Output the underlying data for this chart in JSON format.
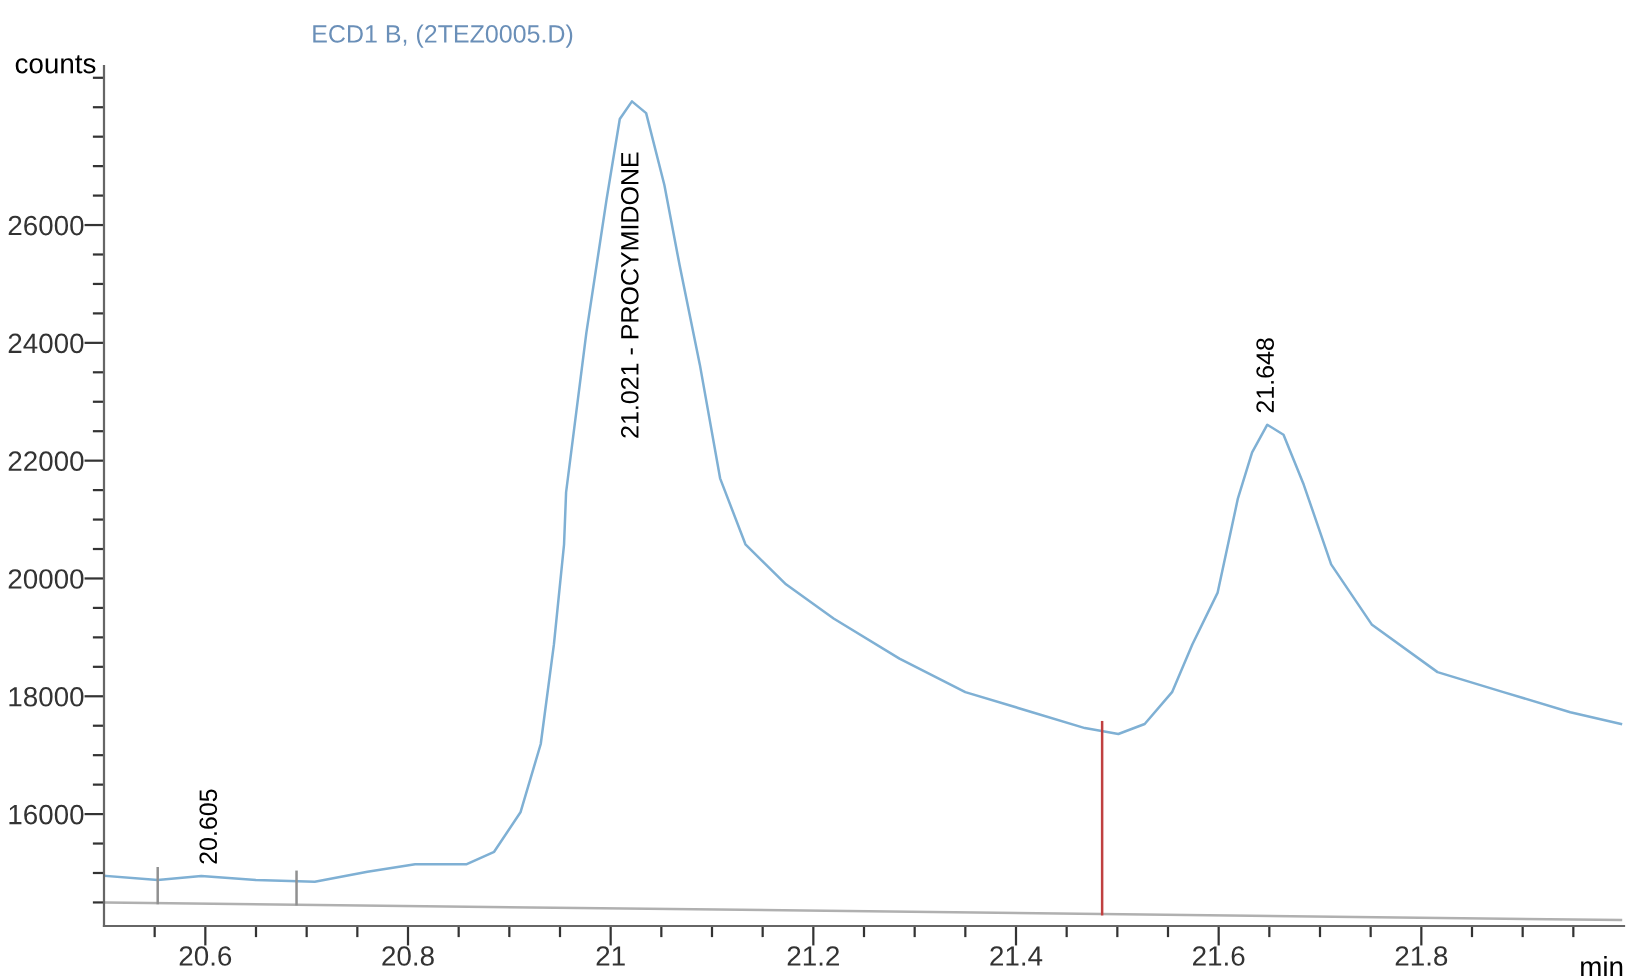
{
  "chart_data": {
    "type": "line",
    "title": "ECD1 B, (2TEZ0005.D)",
    "ylabel": "counts",
    "xlabel": "min",
    "xlim": [
      20.5,
      22.0
    ],
    "ylim": [
      14100,
      28700
    ],
    "xticks": [
      {
        "value": 20.55,
        "label": null
      },
      20.6,
      {
        "value": 20.65,
        "label": null
      },
      {
        "value": 20.7,
        "label": null
      },
      {
        "value": 20.75,
        "label": null
      },
      20.8,
      {
        "value": 20.85,
        "label": null
      },
      {
        "value": 20.9,
        "label": null
      },
      {
        "value": 20.95,
        "label": null
      },
      {
        "value": 21.0,
        "label": "21"
      },
      {
        "value": 21.05,
        "label": null
      },
      {
        "value": 21.1,
        "label": null
      },
      {
        "value": 21.15,
        "label": null
      },
      21.2,
      {
        "value": 21.25,
        "label": null
      },
      {
        "value": 21.3,
        "label": null
      },
      {
        "value": 21.35,
        "label": null
      },
      21.4,
      {
        "value": 21.45,
        "label": null
      },
      {
        "value": 21.5,
        "label": null
      },
      {
        "value": 21.55,
        "label": null
      },
      21.6,
      {
        "value": 21.65,
        "label": null
      },
      {
        "value": 21.7,
        "label": null
      },
      {
        "value": 21.75,
        "label": null
      },
      21.8,
      {
        "value": 21.85,
        "label": null
      },
      {
        "value": 21.9,
        "label": null
      },
      {
        "value": 21.95,
        "label": null
      }
    ],
    "yticks": [
      {
        "value": 14500,
        "label": null
      },
      {
        "value": 15000,
        "label": null
      },
      {
        "value": 15500,
        "label": null
      },
      16000,
      {
        "value": 16500,
        "label": null
      },
      {
        "value": 17000,
        "label": null
      },
      {
        "value": 17500,
        "label": null
      },
      18000,
      {
        "value": 18500,
        "label": null
      },
      {
        "value": 19000,
        "label": null
      },
      {
        "value": 19500,
        "label": null
      },
      20000,
      {
        "value": 20500,
        "label": null
      },
      {
        "value": 21000,
        "label": null
      },
      {
        "value": 21500,
        "label": null
      },
      22000,
      {
        "value": 22500,
        "label": null
      },
      {
        "value": 23000,
        "label": null
      },
      {
        "value": 23500,
        "label": null
      },
      24000,
      {
        "value": 24500,
        "label": null
      },
      {
        "value": 25000,
        "label": null
      },
      {
        "value": 25500,
        "label": null
      },
      26000,
      {
        "value": 26500,
        "label": null
      },
      {
        "value": 27000,
        "label": null
      },
      {
        "value": 27500,
        "label": null
      },
      {
        "value": 28000,
        "label": null
      },
      {
        "value": 28500,
        "label": null
      }
    ],
    "grid": false,
    "legend": false,
    "marker": "none",
    "line_style": "solid",
    "series": [
      {
        "color": "#7fb0d4",
        "x": [
          20.502,
          20.553,
          20.596,
          20.65,
          20.708,
          20.76,
          20.807,
          20.858,
          20.885,
          20.911,
          20.931,
          20.944,
          20.954,
          20.956,
          20.976,
          20.996,
          21.009,
          21.021,
          21.035,
          21.053,
          21.068,
          21.088,
          21.108,
          21.133,
          21.173,
          21.22,
          21.285,
          21.35,
          21.416,
          21.468,
          21.501,
          21.527,
          21.554,
          21.574,
          21.599,
          21.619,
          21.633,
          21.648,
          21.664,
          21.684,
          21.711,
          21.751,
          21.816,
          21.881,
          21.947,
          21.997
        ],
        "values": [
          14950,
          14880,
          14950,
          14880,
          14850,
          15020,
          15150,
          15150,
          15360,
          16030,
          17190,
          18880,
          20580,
          21460,
          24170,
          26440,
          27800,
          28100,
          27900,
          26680,
          25320,
          23630,
          21700,
          20580,
          19900,
          19320,
          18640,
          18070,
          17730,
          17460,
          17360,
          17530,
          18070,
          18880,
          19760,
          21360,
          22140,
          22610,
          22440,
          21590,
          20240,
          19220,
          18410,
          18070,
          17730,
          17530
        ]
      },
      {
        "color": "#b0b0b0",
        "x": [
          20.502,
          21.997
        ],
        "values": [
          14500,
          14200
        ]
      },
      {
        "color": "#909090",
        "x": [
          20.553,
          20.553
        ],
        "values": [
          14490,
          15080
        ]
      },
      {
        "color": "#909090",
        "x": [
          20.69,
          20.69
        ],
        "values": [
          14470,
          15020
        ]
      },
      {
        "color": "#c04040",
        "x": [
          21.485,
          21.485
        ],
        "values": [
          14300,
          17560
        ]
      }
    ],
    "annotations": [
      {
        "text": "20.605",
        "x": 20.605,
        "y": 14950
      },
      {
        "text": "21.021 - PROCYMIDONE",
        "x": 21.021,
        "y": 28100
      },
      {
        "text": "21.648",
        "x": 21.648,
        "y": 22610
      }
    ]
  }
}
